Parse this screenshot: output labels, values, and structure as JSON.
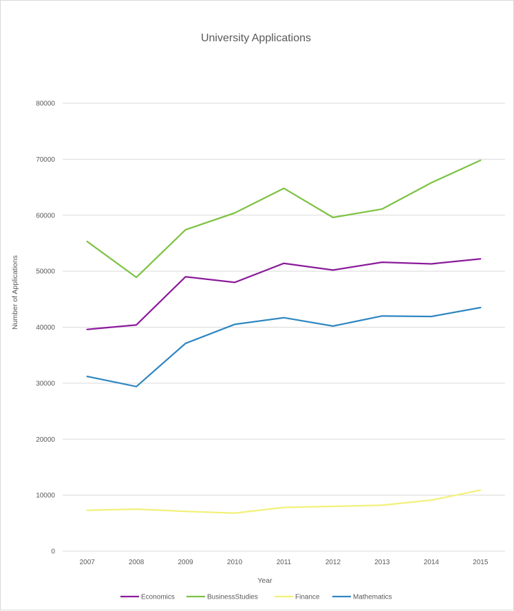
{
  "chart_data": {
    "type": "line",
    "title": "University Applications",
    "xlabel": "Year",
    "ylabel": "Number of Applications",
    "categories": [
      "2007",
      "2008",
      "2009",
      "2010",
      "2011",
      "2012",
      "2013",
      "2014",
      "2015"
    ],
    "ylim": [
      0,
      80000
    ],
    "yticks": [
      0,
      10000,
      20000,
      30000,
      40000,
      50000,
      60000,
      70000,
      80000
    ],
    "grid": true,
    "legend_position": "bottom",
    "series": [
      {
        "name": "Economics",
        "color": "#8b1a9b",
        "values": [
          39600,
          40400,
          49000,
          48000,
          51400,
          50200,
          51600,
          51300,
          52200
        ]
      },
      {
        "name": "BusinessStudies",
        "color": "#7cc242",
        "values": [
          55300,
          48900,
          57400,
          60400,
          64800,
          59600,
          61100,
          65800,
          69800
        ]
      },
      {
        "name": "Finance",
        "color": "#f1f17a",
        "values": [
          7300,
          7500,
          7100,
          6800,
          7800,
          8000,
          8200,
          9100,
          10900
        ]
      },
      {
        "name": "Mathematics",
        "color": "#2e86c1",
        "values": [
          31200,
          29400,
          37100,
          40500,
          41700,
          40200,
          42000,
          41900,
          43500
        ]
      }
    ]
  }
}
